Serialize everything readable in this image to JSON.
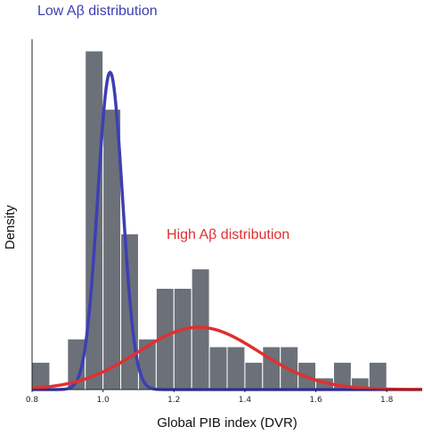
{
  "chart_data": {
    "type": "bar",
    "title": "",
    "xlabel": "Global PIB index (DVR)",
    "ylabel": "Density",
    "xlim": [
      0.8,
      1.9
    ],
    "ylim": [
      0,
      18
    ],
    "x_ticks": [
      "0.8",
      "1.0",
      "1.2",
      "1.4",
      "1.6",
      "1.8"
    ],
    "x_tick_values": [
      0.8,
      1.0,
      1.2,
      1.4,
      1.6,
      1.8
    ],
    "grid": false,
    "bar_color": "#6b7079",
    "histogram": {
      "bin_width": 0.05,
      "bins": [
        {
          "start": 0.8,
          "value": 1.4
        },
        {
          "start": 0.85,
          "value": 0
        },
        {
          "start": 0.9,
          "value": 2.6
        },
        {
          "start": 0.95,
          "value": 17.4
        },
        {
          "start": 1.0,
          "value": 14.4
        },
        {
          "start": 1.05,
          "value": 8.0
        },
        {
          "start": 1.1,
          "value": 2.6
        },
        {
          "start": 1.15,
          "value": 5.2
        },
        {
          "start": 1.2,
          "value": 5.2
        },
        {
          "start": 1.25,
          "value": 6.2
        },
        {
          "start": 1.3,
          "value": 2.2
        },
        {
          "start": 1.35,
          "value": 2.2
        },
        {
          "start": 1.4,
          "value": 1.4
        },
        {
          "start": 1.45,
          "value": 2.2
        },
        {
          "start": 1.5,
          "value": 2.2
        },
        {
          "start": 1.55,
          "value": 1.4
        },
        {
          "start": 1.6,
          "value": 0.6
        },
        {
          "start": 1.65,
          "value": 1.4
        },
        {
          "start": 1.7,
          "value": 0.6
        },
        {
          "start": 1.75,
          "value": 1.4
        }
      ]
    },
    "series": [
      {
        "name": "Low Aβ distribution",
        "type": "line",
        "color": "#3d3fb3",
        "distribution": "normal",
        "mean": 1.02,
        "sd": 0.035,
        "peak": 16.3
      },
      {
        "name": "High Aβ distribution",
        "type": "line",
        "color": "#e03030",
        "distribution": "normal",
        "mean": 1.27,
        "sd": 0.17,
        "peak": 3.2
      }
    ],
    "annotations": [
      "Low Aβ distribution",
      "High Aβ distribution"
    ]
  }
}
